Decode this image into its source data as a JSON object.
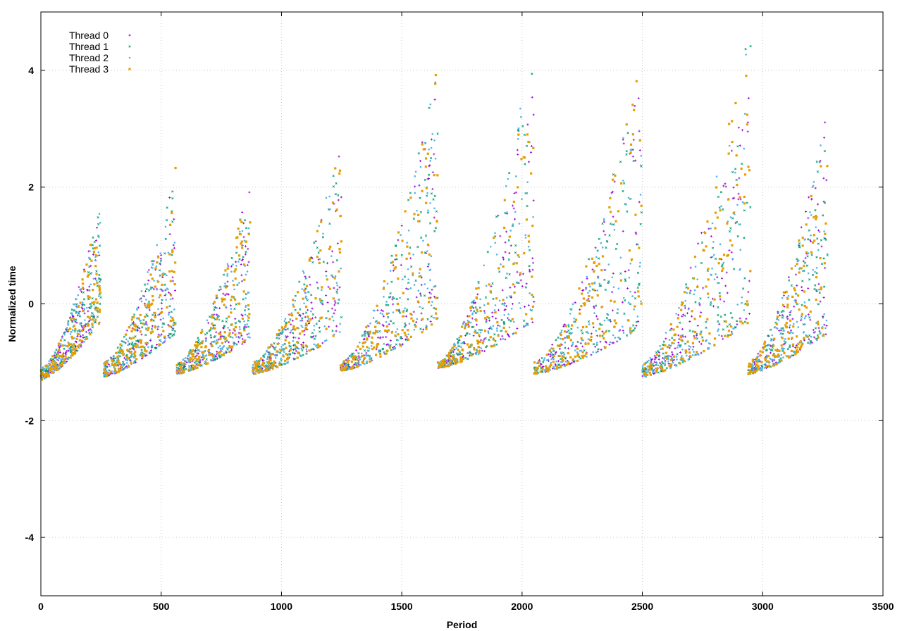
{
  "chart_data": {
    "type": "scatter",
    "xlabel": "Period",
    "ylabel": "Normalized time",
    "xlim": [
      0,
      3500
    ],
    "ylim": [
      -5,
      5
    ],
    "xticks": [
      0,
      500,
      1000,
      1500,
      2000,
      2500,
      3000,
      3500
    ],
    "yticks": [
      -4,
      -2,
      0,
      2,
      4
    ],
    "grid": true,
    "legend_position": "top-left",
    "series": [
      {
        "name": "Thread 0",
        "color": "#9400d3",
        "marker": "plus"
      },
      {
        "name": "Thread 1",
        "color": "#009e73",
        "marker": "x"
      },
      {
        "name": "Thread 2",
        "color": "#56b4e9",
        "marker": "asterisk"
      },
      {
        "name": "Thread 3",
        "color": "#e69f00",
        "marker": "square"
      }
    ],
    "x_range": [
      0,
      3270
    ],
    "segments": [
      {
        "x_start": 0,
        "x_end": 250,
        "y_low": [
          -1.3,
          -0.3
        ],
        "y_high": [
          -1.1,
          1.8
        ]
      },
      {
        "x_start": 260,
        "x_end": 560,
        "y_low": [
          -1.25,
          -0.5
        ],
        "y_high": [
          -1.0,
          2.4
        ]
      },
      {
        "x_start": 565,
        "x_end": 870,
        "y_low": [
          -1.2,
          -0.6
        ],
        "y_high": [
          -1.0,
          2.1
        ]
      },
      {
        "x_start": 880,
        "x_end": 1250,
        "y_low": [
          -1.2,
          -0.5
        ],
        "y_high": [
          -1.0,
          2.9
        ]
      },
      {
        "x_start": 1245,
        "x_end": 1650,
        "y_low": [
          -1.15,
          -0.3
        ],
        "y_high": [
          -1.0,
          4.1
        ]
      },
      {
        "x_start": 1650,
        "x_end": 2050,
        "y_low": [
          -1.1,
          -0.3
        ],
        "y_high": [
          -1.0,
          4.6
        ]
      },
      {
        "x_start": 2050,
        "x_end": 2500,
        "y_low": [
          -1.2,
          -0.4
        ],
        "y_high": [
          -1.0,
          4.3
        ]
      },
      {
        "x_start": 2500,
        "x_end": 2950,
        "y_low": [
          -1.25,
          -0.3
        ],
        "y_high": [
          -1.0,
          4.9
        ]
      },
      {
        "x_start": 2940,
        "x_end": 3270,
        "y_low": [
          -1.2,
          -0.5
        ],
        "y_high": [
          -1.0,
          3.4
        ]
      }
    ]
  }
}
